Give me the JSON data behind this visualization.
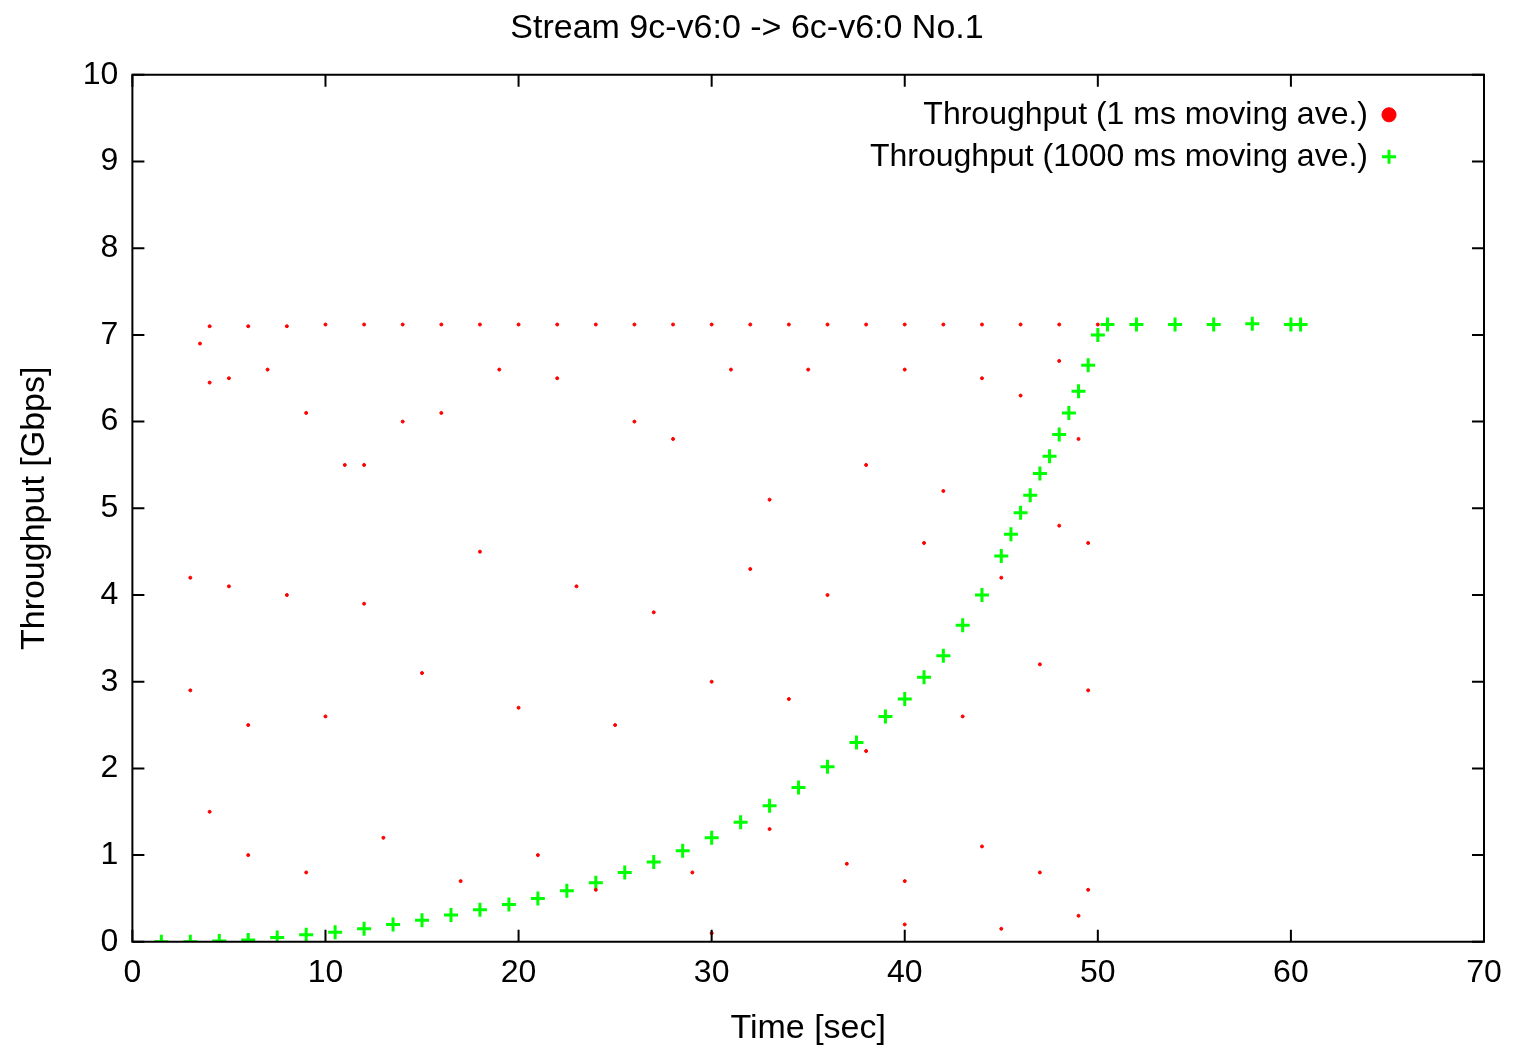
{
  "chart_data": {
    "type": "scatter",
    "title": "Stream 9c-v6:0 -> 6c-v6:0 No.1",
    "xlabel": "Time [sec]",
    "ylabel": "Throughput [Gbps]",
    "xlim": [
      0,
      70
    ],
    "xticks": [
      0,
      10,
      20,
      30,
      40,
      50,
      60,
      70
    ],
    "ylim": [
      0,
      10
    ],
    "yticks": [
      0,
      1,
      2,
      3,
      4,
      5,
      6,
      7,
      8,
      9,
      10
    ],
    "grid": false,
    "legend": "top right",
    "series": [
      {
        "name": "Throughput (1 ms moving ave.)",
        "color": "#ff0000",
        "marker": "circle",
        "x": [
          4,
          6,
          8,
          10,
          12,
          14,
          16,
          18,
          20,
          22,
          24,
          26,
          28,
          30,
          32,
          34,
          36,
          38,
          40,
          42,
          44,
          46,
          48,
          50,
          3.5,
          4,
          5,
          7,
          9,
          11,
          12,
          14,
          16,
          19,
          22,
          26,
          28,
          31,
          33,
          35,
          38,
          40,
          42,
          44,
          46,
          48,
          49,
          3,
          5,
          8,
          12,
          18,
          23,
          27,
          32,
          36,
          41,
          45,
          48,
          49.5,
          3,
          6,
          10,
          15,
          20,
          25,
          30,
          34,
          38,
          43,
          47,
          49.5,
          4,
          6,
          9,
          13,
          17,
          21,
          24,
          29,
          33,
          37,
          40,
          44,
          47,
          49.5,
          30,
          40,
          45,
          49
        ],
        "values": [
          7.1,
          7.1,
          7.1,
          7.12,
          7.12,
          7.12,
          7.12,
          7.12,
          7.12,
          7.12,
          7.12,
          7.12,
          7.12,
          7.12,
          7.12,
          7.12,
          7.12,
          7.12,
          7.12,
          7.12,
          7.12,
          7.12,
          7.12,
          7.12,
          6.9,
          6.45,
          6.5,
          6.6,
          6.1,
          5.5,
          5.5,
          6.0,
          6.1,
          6.6,
          6.5,
          6.0,
          5.8,
          6.6,
          5.1,
          6.6,
          5.5,
          6.6,
          5.2,
          6.5,
          6.3,
          6.7,
          5.8,
          4.2,
          4.1,
          4.0,
          3.9,
          4.5,
          4.1,
          3.8,
          4.3,
          4.0,
          4.6,
          4.2,
          4.8,
          4.6,
          2.9,
          2.5,
          2.6,
          3.1,
          2.7,
          2.5,
          3.0,
          2.8,
          2.2,
          2.6,
          3.2,
          2.9,
          1.5,
          1.0,
          0.8,
          1.2,
          0.7,
          1.0,
          0.6,
          0.8,
          1.3,
          0.9,
          0.7,
          1.1,
          0.8,
          0.6,
          0.1,
          0.2,
          0.15,
          0.3
        ]
      },
      {
        "name": "Throughput (1000 ms moving ave.)",
        "color": "#00ff00",
        "marker": "cross",
        "x": [
          1.5,
          3,
          4.5,
          6,
          7.5,
          9,
          10.5,
          12,
          13.5,
          15,
          16.5,
          18,
          19.5,
          21,
          22.5,
          24,
          25.5,
          27,
          28.5,
          30,
          31.5,
          33,
          34.5,
          36,
          37.5,
          39,
          40,
          41,
          42,
          43,
          44,
          45,
          45.5,
          46,
          46.5,
          47,
          47.5,
          48,
          48.5,
          49,
          49.5,
          50,
          50.5,
          52,
          54,
          56,
          58,
          60,
          60.5
        ],
        "values": [
          0,
          0,
          0.01,
          0.02,
          0.05,
          0.08,
          0.11,
          0.15,
          0.2,
          0.25,
          0.31,
          0.37,
          0.43,
          0.5,
          0.59,
          0.68,
          0.8,
          0.92,
          1.05,
          1.2,
          1.38,
          1.57,
          1.78,
          2.02,
          2.3,
          2.6,
          2.8,
          3.05,
          3.3,
          3.65,
          4.0,
          4.45,
          4.7,
          4.95,
          5.15,
          5.4,
          5.6,
          5.85,
          6.1,
          6.35,
          6.65,
          7.0,
          7.12,
          7.12,
          7.12,
          7.12,
          7.13,
          7.12,
          7.12
        ]
      }
    ]
  }
}
